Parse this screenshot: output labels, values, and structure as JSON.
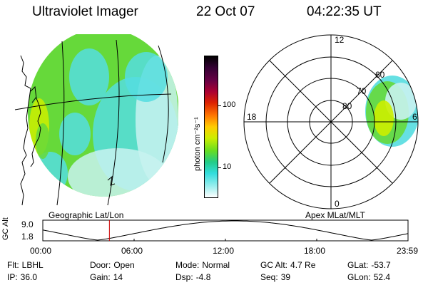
{
  "header": {
    "title": "Ultraviolet Imager",
    "date": "22 Oct 07",
    "time": "04:22:35 UT"
  },
  "colorbar": {
    "unit_text": "photon cm⁻²s⁻¹",
    "ticks": [
      "100",
      "10"
    ],
    "colors": [
      "#000000",
      "#330033",
      "#660044",
      "#aa0033",
      "#dd2200",
      "#ff7700",
      "#ffcc00",
      "#ccee00",
      "#66dd22",
      "#22cc88",
      "#33dddd",
      "#99eeee",
      "#ffffff"
    ]
  },
  "geographic_panel": {
    "caption": "Geographic Lat/Lon",
    "palette": {
      "green": "#66d93a",
      "cyan": "#55dde0",
      "pale": "#c8f2f0",
      "yellow": "#ccee00",
      "white": "#ffffff"
    }
  },
  "polar_panel": {
    "caption": "Apex  MLat/MLT",
    "mlt_labels": {
      "top": "12",
      "bottom": "0",
      "left": "18",
      "right": "6"
    },
    "mlat_labels": [
      "80",
      "70",
      "60"
    ]
  },
  "altitude_plot": {
    "ylabel": "GC Alt",
    "yticks": [
      "9.0",
      "1.8"
    ],
    "xticks": [
      "00:00",
      "06:00",
      "12:00",
      "18:00",
      "23:59"
    ],
    "current_time_hours": 4.376,
    "marker_color": "#cc0000"
  },
  "info": {
    "flt": {
      "label": "Flt:",
      "value": "LBHL"
    },
    "door": {
      "label": "Door:",
      "value": "Open"
    },
    "mode": {
      "label": "Mode:",
      "value": "Normal"
    },
    "gc_alt": {
      "label": "GC Alt:",
      "value": "4.7 Re"
    },
    "glat": {
      "label": "GLat:",
      "value": "-53.7"
    },
    "ip": {
      "label": "IP:",
      "value": "36.0"
    },
    "gain": {
      "label": "Gain:",
      "value": "14"
    },
    "dsp": {
      "label": "Dsp:",
      "value": "-4.8"
    },
    "seq": {
      "label": "Seq:",
      "value": "39"
    },
    "glon": {
      "label": "GLon:",
      "value": "52.4"
    }
  }
}
